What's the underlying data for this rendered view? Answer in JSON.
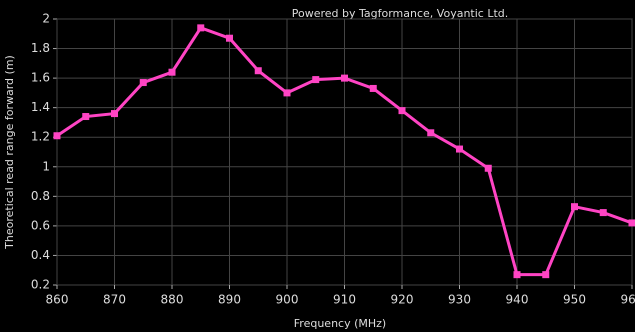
{
  "chart_data": {
    "type": "line",
    "title": "Powered by Tagformance, Voyantic Ltd.",
    "x_label": "Frequency (MHz)",
    "y_label": "Theoretical read range forward (m)",
    "x": [
      860,
      865,
      870,
      875,
      880,
      885,
      890,
      895,
      900,
      905,
      910,
      915,
      920,
      925,
      930,
      935,
      940,
      945,
      950,
      955,
      960
    ],
    "series": [
      {
        "name": "Read range",
        "color": "#ff44c4",
        "values": [
          1.21,
          1.34,
          1.36,
          1.57,
          1.64,
          1.94,
          1.87,
          1.65,
          1.5,
          1.59,
          1.6,
          1.53,
          1.38,
          1.23,
          1.12,
          0.99,
          0.27,
          0.27,
          0.73,
          0.69,
          0.62
        ]
      }
    ],
    "xlim": [
      860,
      960
    ],
    "xticks": [
      860,
      870,
      880,
      890,
      900,
      910,
      920,
      930,
      940,
      950,
      960
    ],
    "ylim": [
      0.2,
      2
    ],
    "yticks": [
      0.2,
      0.4,
      0.6,
      0.8,
      1,
      1.2,
      1.4,
      1.6,
      1.8,
      2
    ],
    "grid": true
  }
}
